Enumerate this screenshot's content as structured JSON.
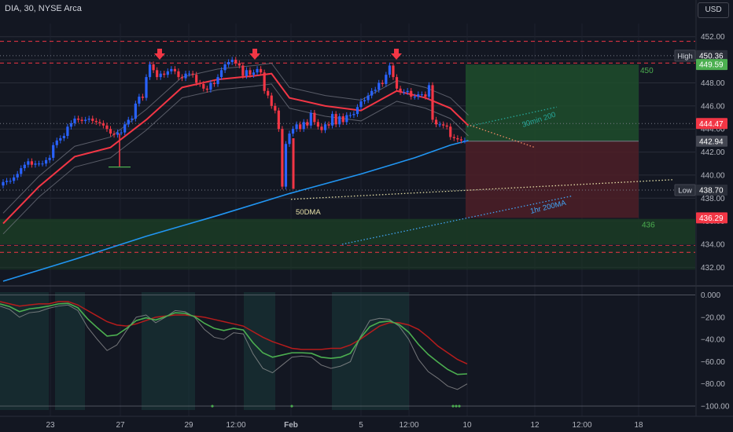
{
  "header": {
    "symbol_line": "DIA, 30, NYSE Arca",
    "currency": "USD"
  },
  "colors": {
    "bg": "#131722",
    "up": "#2962ff",
    "down": "#f23645",
    "grid": "#2a2e39",
    "sma200": "#2196f3",
    "ema": "#f23645",
    "green_zone": "#1e4d2b",
    "red_zone": "#4d1f27",
    "osc_fast": "#4caf50",
    "osc_slow": "#b71c1c"
  },
  "chart_data": [
    {
      "type": "candlestick",
      "price_axis": {
        "ticks": [
          "452.00",
          "450.00",
          "448.00",
          "446.00",
          "444.00",
          "442.00",
          "440.00",
          "438.00",
          "436.00",
          "434.00",
          "432.00"
        ],
        "ylim": [
          430.8,
          452.8
        ]
      },
      "time_axis": {
        "labels": [
          "23",
          "27",
          "29",
          "12:00",
          "Feb",
          "5",
          "12:00",
          "10",
          "12",
          "12:00",
          "18"
        ]
      },
      "price_tags": [
        {
          "label": "High",
          "value": "450.36"
        },
        {
          "label": "",
          "value": "449.59"
        },
        {
          "label": "",
          "value": "444.47"
        },
        {
          "label": "",
          "value": "442.94"
        },
        {
          "label": "Low",
          "value": "438.70"
        },
        {
          "label": "",
          "value": "436.29"
        }
      ],
      "horizontal_levels": [
        {
          "price": 451.6,
          "style": "dashed",
          "color": "#f23645"
        },
        {
          "price": 450.36,
          "style": "dotted",
          "color": "#787b86"
        },
        {
          "price": 449.72,
          "style": "dashed",
          "color": "#f23645"
        },
        {
          "price": 444.47,
          "style": "dotted",
          "color": "#787b86"
        },
        {
          "price": 438.7,
          "style": "dotted",
          "color": "#787b86"
        },
        {
          "price": 433.3,
          "style": "dashed",
          "color": "#f23645"
        }
      ],
      "zones": [
        {
          "name": "target",
          "from": 442.94,
          "to": 449.59,
          "label": "450"
        },
        {
          "name": "stop",
          "from": 436.29,
          "to": 442.94
        },
        {
          "name": "support",
          "from": 434.0,
          "to": 436.2,
          "label": "436"
        },
        {
          "name": "support-2",
          "from": 431.8,
          "to": 433.9
        }
      ],
      "annotations": [
        {
          "text": "50DMA",
          "type": "line-label"
        },
        {
          "text": "30min 200",
          "type": "line-label"
        },
        {
          "text": "1hr 200MA",
          "type": "line-label"
        }
      ],
      "ma_200": [
        [
          0,
          430.8
        ],
        [
          20,
          432.7
        ],
        [
          40,
          434.7
        ],
        [
          60,
          436.5
        ],
        [
          80,
          438.4
        ],
        [
          100,
          440.1
        ],
        [
          115,
          441.5
        ],
        [
          125,
          442.6
        ],
        [
          130,
          443.0
        ]
      ],
      "ema": [
        [
          0,
          435.8
        ],
        [
          10,
          439.0
        ],
        [
          20,
          441.6
        ],
        [
          30,
          442.4
        ],
        [
          40,
          444.8
        ],
        [
          50,
          447.6
        ],
        [
          60,
          448.3
        ],
        [
          70,
          448.6
        ],
        [
          75,
          448.8
        ],
        [
          80,
          446.7
        ],
        [
          90,
          446.0
        ],
        [
          100,
          445.6
        ],
        [
          110,
          447.3
        ],
        [
          118,
          446.7
        ],
        [
          125,
          445.8
        ],
        [
          130,
          444.3
        ]
      ],
      "closes": [
        439.4,
        439.5,
        439.5,
        439.8,
        440.1,
        440.6,
        440.9,
        441.2,
        440.9,
        441.0,
        441.0,
        441.0,
        441.3,
        441.5,
        442.6,
        443.0,
        443.2,
        443.4,
        444.2,
        444.5,
        444.9,
        444.8,
        444.7,
        444.8,
        444.9,
        444.7,
        444.6,
        444.5,
        444.3,
        444.0,
        443.6,
        443.5,
        443.7,
        443.7,
        444.4,
        444.8,
        444.9,
        446.2,
        446.8,
        446.7,
        448.5,
        449.6,
        449.1,
        448.5,
        448.8,
        448.7,
        449.0,
        449.2,
        449.0,
        448.5,
        448.4,
        448.8,
        448.8,
        448.7,
        448.0,
        447.9,
        447.5,
        447.4,
        448.0,
        447.9,
        448.5,
        449.1,
        449.6,
        449.8,
        450.0,
        449.7,
        449.5,
        448.6,
        449.1,
        448.7,
        448.9,
        449.2,
        448.9,
        447.3,
        446.9,
        446.0,
        445.6,
        444.0,
        439.0,
        442.7,
        443.6,
        444.0,
        444.4,
        444.0,
        444.6,
        444.3,
        445.4,
        444.6,
        444.2,
        443.9,
        444.4,
        444.3,
        445.3,
        444.4,
        445.1,
        444.6,
        445.2,
        445.2,
        445.3,
        445.9,
        446.4,
        446.5,
        446.9,
        447.3,
        447.4,
        448.0,
        447.9,
        448.7,
        449.5,
        448.5,
        447.5,
        447.2,
        447.2,
        447.3,
        446.8,
        446.8,
        447.0,
        447.0,
        446.8,
        447.8,
        444.8,
        444.4,
        444.4,
        444.3,
        444.2,
        443.3,
        443.2,
        443.1,
        443.0,
        443.0
      ]
    },
    {
      "type": "line",
      "name": "oscillator",
      "y_ticks": [
        "0.000",
        "−20.00",
        "−40.00",
        "−60.00",
        "−80.00",
        "−100.00"
      ],
      "ylim": [
        -103.5,
        2.5
      ],
      "series": [
        {
          "name": "",
          "values": [
            -10,
            -13,
            -20,
            -16,
            -15,
            -12,
            -10,
            -9,
            -14,
            -29,
            -40,
            -50,
            -45,
            -32,
            -20,
            -18,
            -25,
            -20,
            -14,
            -15,
            -20,
            -31,
            -38,
            -40,
            -34,
            -35,
            -53,
            -66,
            -70,
            -63,
            -56,
            -55,
            -56,
            -63,
            -66,
            -64,
            -60,
            -38,
            -23,
            -21,
            -22,
            -28,
            -40,
            -58,
            -69,
            -75,
            -82,
            -85,
            -80
          ]
        },
        {
          "name": "",
          "values": [
            -6,
            -8,
            -10,
            -9,
            -8,
            -8,
            -6,
            -6,
            -9,
            -14,
            -19,
            -24,
            -27,
            -28,
            -26,
            -23,
            -20,
            -19,
            -18,
            -18,
            -19,
            -20,
            -22,
            -24,
            -26,
            -28,
            -33,
            -38,
            -42,
            -45,
            -48,
            -49,
            -49,
            -49,
            -48,
            -48,
            -45,
            -40,
            -34,
            -28,
            -25,
            -25,
            -27,
            -31,
            -38,
            -46,
            -52,
            -58,
            -62
          ]
        }
      ]
    }
  ]
}
